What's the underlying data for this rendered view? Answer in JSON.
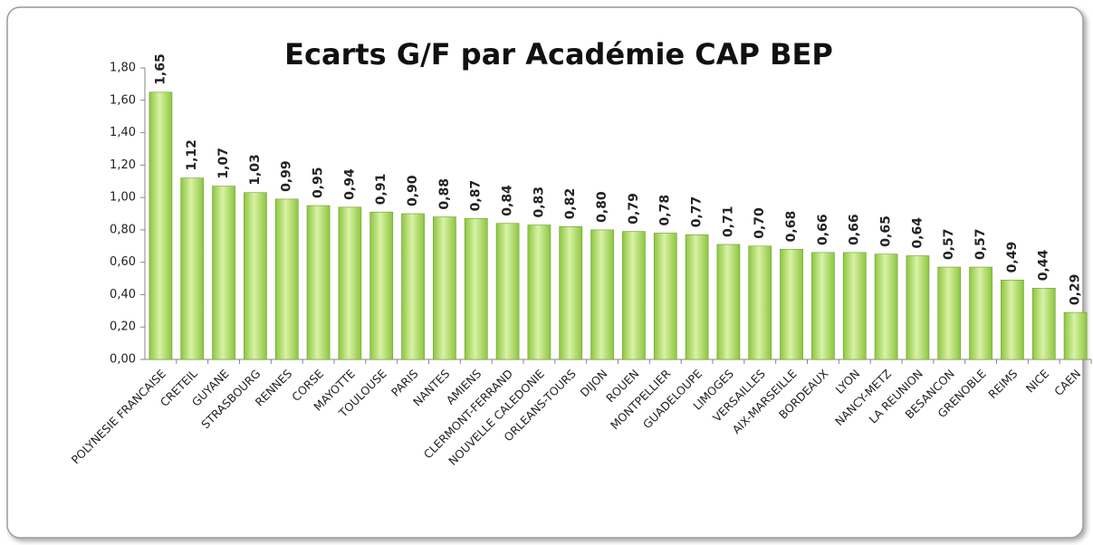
{
  "chart_data": {
    "type": "bar",
    "title": "Ecarts G/F par Académie CAP BEP",
    "categories": [
      "POLYNESIE FRANCAISE",
      "CRETEIL",
      "GUYANE",
      "STRASBOURG",
      "RENNES",
      "CORSE",
      "MAYOTTE",
      "TOULOUSE",
      "PARIS",
      "NANTES",
      "AMIENS",
      "CLERMONT-FERRAND",
      "NOUVELLE CALEDONIE",
      "ORLEANS-TOURS",
      "DIJON",
      "ROUEN",
      "MONTPELLIER",
      "GUADELOUPE",
      "LIMOGES",
      "VERSAILLES",
      "AIX-MARSEILLE",
      "BORDEAUX",
      "LYON",
      "NANCY-METZ",
      "LA REUNION",
      "BESANCON",
      "GRENOBLE",
      "REIMS",
      "NICE",
      "CAEN"
    ],
    "values": [
      1.65,
      1.12,
      1.07,
      1.03,
      0.99,
      0.95,
      0.94,
      0.91,
      0.9,
      0.88,
      0.87,
      0.84,
      0.83,
      0.82,
      0.8,
      0.79,
      0.78,
      0.77,
      0.71,
      0.7,
      0.68,
      0.66,
      0.66,
      0.65,
      0.64,
      0.57,
      0.57,
      0.49,
      0.44,
      0.29
    ],
    "value_labels": [
      "1,65",
      "1,12",
      "1,07",
      "1,03",
      "0,99",
      "0,95",
      "0,94",
      "0,91",
      "0,90",
      "0,88",
      "0,87",
      "0,84",
      "0,83",
      "0,82",
      "0,80",
      "0,79",
      "0,78",
      "0,77",
      "0,71",
      "0,70",
      "0,68",
      "0,66",
      "0,66",
      "0,65",
      "0,64",
      "0,57",
      "0,57",
      "0,49",
      "0,44",
      "0,29"
    ],
    "color": "#8cc63f",
    "ylim": [
      0,
      1.8
    ],
    "yticks": [
      {
        "value": 0,
        "label": "0,00"
      },
      {
        "value": 0.2,
        "label": "0,20"
      },
      {
        "value": 0.4,
        "label": "0,40"
      },
      {
        "value": 0.6,
        "label": "0,60"
      },
      {
        "value": 0.8,
        "label": "0,80"
      },
      {
        "value": 1.0,
        "label": "1,00"
      },
      {
        "value": 1.2,
        "label": "1,20"
      },
      {
        "value": 1.4,
        "label": "1,40"
      },
      {
        "value": 1.6,
        "label": "1,60"
      },
      {
        "value": 1.8,
        "label": "1,80"
      }
    ],
    "grid": false
  }
}
